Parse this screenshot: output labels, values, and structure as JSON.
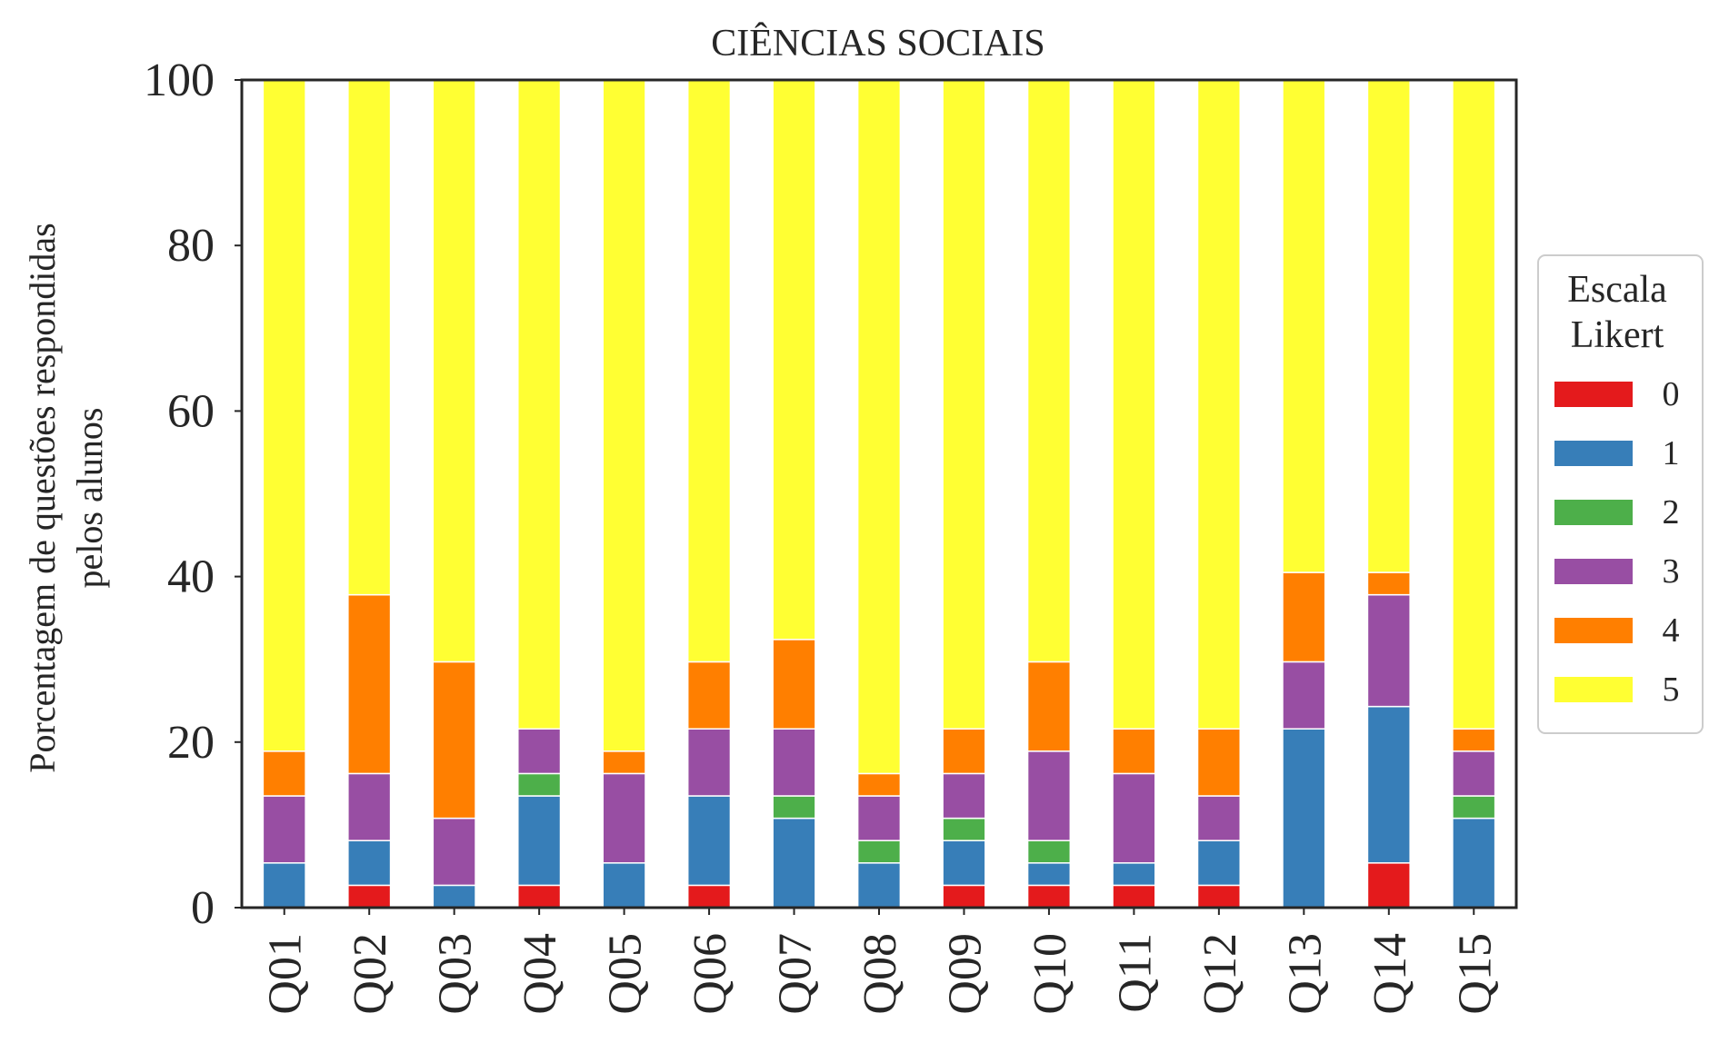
{
  "chart_data": {
    "type": "bar",
    "stacked": true,
    "title": "CIÊNCIAS SOCIAIS",
    "ylabel_line1": "Porcentagem de questões respondidas",
    "ylabel_line2": "pelos alunos",
    "xlabel": "",
    "ylim": [
      0,
      100
    ],
    "yticks": [
      "0",
      "20",
      "40",
      "60",
      "80",
      "100"
    ],
    "grid": false,
    "categories": [
      "Q01",
      "Q02",
      "Q03",
      "Q04",
      "Q05",
      "Q06",
      "Q07",
      "Q08",
      "Q09",
      "Q10",
      "Q11",
      "Q12",
      "Q13",
      "Q14",
      "Q15"
    ],
    "legend": {
      "title_line1": "Escala",
      "title_line2": "Likert",
      "placement": "right, outside plot"
    },
    "series": [
      {
        "name": "0",
        "color": "#e41a1c",
        "values": [
          0,
          2.7,
          0,
          2.7,
          0,
          2.7,
          0,
          0,
          2.7,
          2.7,
          2.7,
          2.7,
          0,
          5.4,
          0
        ]
      },
      {
        "name": "1",
        "color": "#377eb8",
        "values": [
          5.4,
          5.4,
          2.7,
          10.8,
          5.4,
          10.8,
          10.8,
          5.4,
          5.4,
          2.7,
          2.7,
          5.4,
          21.6,
          18.9,
          10.8
        ]
      },
      {
        "name": "2",
        "color": "#4daf4a",
        "values": [
          0,
          0,
          0,
          2.7,
          0,
          0,
          2.7,
          2.7,
          2.7,
          2.7,
          0,
          0,
          0,
          0,
          2.7
        ]
      },
      {
        "name": "3",
        "color": "#984ea3",
        "values": [
          8.1,
          8.1,
          8.1,
          5.4,
          10.8,
          8.1,
          8.1,
          5.4,
          5.4,
          10.8,
          10.8,
          5.4,
          8.1,
          13.5,
          5.4
        ]
      },
      {
        "name": "4",
        "color": "#ff7f00",
        "values": [
          5.4,
          21.6,
          18.9,
          0,
          2.7,
          8.1,
          10.8,
          2.7,
          5.4,
          10.8,
          5.4,
          8.1,
          10.8,
          2.7,
          2.7
        ]
      },
      {
        "name": "5",
        "color": "#ffff33",
        "values": [
          81.1,
          62.2,
          70.3,
          78.4,
          81.1,
          70.3,
          67.6,
          83.8,
          78.4,
          70.3,
          78.4,
          78.4,
          59.5,
          59.5,
          78.4
        ]
      }
    ]
  }
}
